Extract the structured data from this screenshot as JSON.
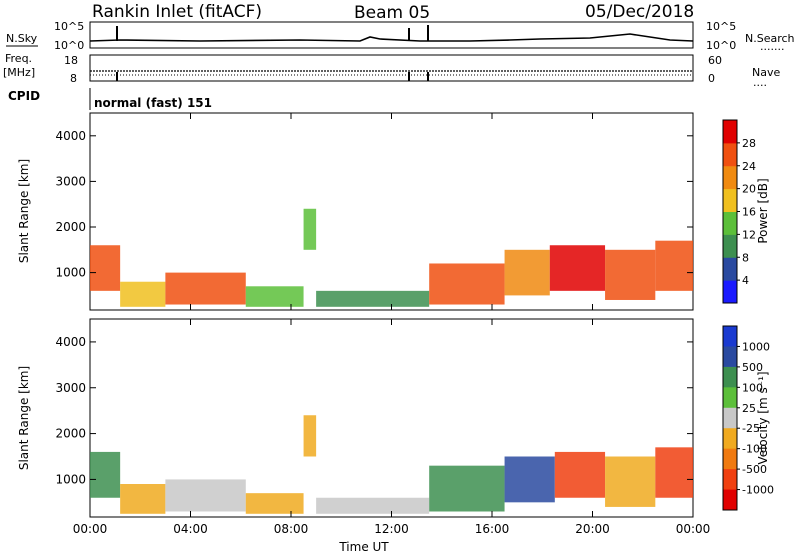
{
  "header": {
    "title": "Rankin Inlet (fitACF)",
    "beam": "Beam 05",
    "date": "05/Dec/2018"
  },
  "panels": {
    "nsky_label": "N.Sky",
    "nsearch_label": "N.Search",
    "freq_label_1": "Freq.",
    "freq_label_2": "[MHz]",
    "nave_label": "Nave",
    "cpid_label": "CPID",
    "cpid_value": "normal (fast) 151",
    "nsky_ticks": [
      "10^5",
      "10^0"
    ],
    "nsearch_ticks": [
      "10^5",
      "10^0"
    ],
    "freq_ticks": [
      "18",
      "8"
    ],
    "nave_ticks": [
      "60",
      "0"
    ]
  },
  "colors": {
    "power_scale": [
      "#1a1aff",
      "#2a4aa0",
      "#3d8f50",
      "#5cbf3a",
      "#f0c020",
      "#f08a10",
      "#f05010",
      "#e00000"
    ],
    "velocity_scale": [
      "#e00000",
      "#f04010",
      "#f07a10",
      "#f0aa20",
      "#c8c8c8",
      "#5cbf3a",
      "#3d8f50",
      "#2a4aa0",
      "#1a3ad0"
    ]
  },
  "chart_data": [
    {
      "type": "heatmap",
      "name": "power",
      "xlabel": "",
      "ylabel": "Slant Range [km]",
      "ylim": [
        180,
        4500
      ],
      "yticks": [
        "1000",
        "2000",
        "3000",
        "4000"
      ],
      "xticks": [],
      "colorbar": {
        "label": "Power [dB]",
        "range": [
          0,
          32
        ],
        "ticks": [
          "4",
          "8",
          "12",
          "16",
          "20",
          "24",
          "28"
        ]
      },
      "regions": [
        {
          "t0": 0.0,
          "t1": 1.2,
          "r0": 600,
          "r1": 1600,
          "v": 24
        },
        {
          "t0": 1.2,
          "t1": 3.0,
          "r0": 250,
          "r1": 800,
          "v": 18
        },
        {
          "t0": 3.0,
          "t1": 6.2,
          "r0": 300,
          "r1": 1000,
          "v": 27
        },
        {
          "t0": 6.2,
          "t1": 8.5,
          "r0": 250,
          "r1": 700,
          "v": 12
        },
        {
          "t0": 8.5,
          "t1": 9.0,
          "r0": 1500,
          "r1": 2400,
          "v": 14
        },
        {
          "t0": 9.0,
          "t1": 13.5,
          "r0": 250,
          "r1": 600,
          "v": 8
        },
        {
          "t0": 13.5,
          "t1": 16.5,
          "r0": 300,
          "r1": 1200,
          "v": 24
        },
        {
          "t0": 16.5,
          "t1": 18.3,
          "r0": 500,
          "r1": 1500,
          "v": 20
        },
        {
          "t0": 18.3,
          "t1": 20.5,
          "r0": 600,
          "r1": 1600,
          "v": 28
        },
        {
          "t0": 20.5,
          "t1": 22.5,
          "r0": 400,
          "r1": 1500,
          "v": 26
        },
        {
          "t0": 22.5,
          "t1": 24.0,
          "r0": 600,
          "r1": 1700,
          "v": 25
        }
      ]
    },
    {
      "type": "heatmap",
      "name": "velocity",
      "xlabel": "Time UT",
      "ylabel": "Slant Range [km]",
      "ylim": [
        180,
        4500
      ],
      "yticks": [
        "1000",
        "2000",
        "3000",
        "4000"
      ],
      "xticks": [
        "00:00",
        "04:00",
        "08:00",
        "12:00",
        "16:00",
        "20:00",
        "00:00"
      ],
      "colorbar": {
        "label": "Velocity [m s⁻¹]",
        "ticks": [
          "1000",
          "500",
          "100",
          "25",
          "-25",
          "-100",
          "-500",
          "-1000"
        ]
      },
      "regions": [
        {
          "t0": 0.0,
          "t1": 1.2,
          "r0": 600,
          "r1": 1600,
          "v": "100"
        },
        {
          "t0": 1.2,
          "t1": 3.0,
          "r0": 250,
          "r1": 900,
          "v": "-100"
        },
        {
          "t0": 3.0,
          "t1": 6.2,
          "r0": 300,
          "r1": 1000,
          "v": "25"
        },
        {
          "t0": 6.2,
          "t1": 8.5,
          "r0": 250,
          "r1": 700,
          "v": "-100"
        },
        {
          "t0": 8.5,
          "t1": 9.0,
          "r0": 1500,
          "r1": 2400,
          "v": "-100"
        },
        {
          "t0": 9.0,
          "t1": 13.5,
          "r0": 250,
          "r1": 600,
          "v": "-25"
        },
        {
          "t0": 13.5,
          "t1": 16.5,
          "r0": 300,
          "r1": 1300,
          "v": "100"
        },
        {
          "t0": 16.5,
          "t1": 18.5,
          "r0": 500,
          "r1": 1500,
          "v": "500"
        },
        {
          "t0": 18.5,
          "t1": 20.5,
          "r0": 600,
          "r1": 1600,
          "v": "-500"
        },
        {
          "t0": 20.5,
          "t1": 22.5,
          "r0": 400,
          "r1": 1500,
          "v": "-100"
        },
        {
          "t0": 22.5,
          "t1": 24.0,
          "r0": 600,
          "r1": 1700,
          "v": "-500"
        }
      ]
    }
  ]
}
